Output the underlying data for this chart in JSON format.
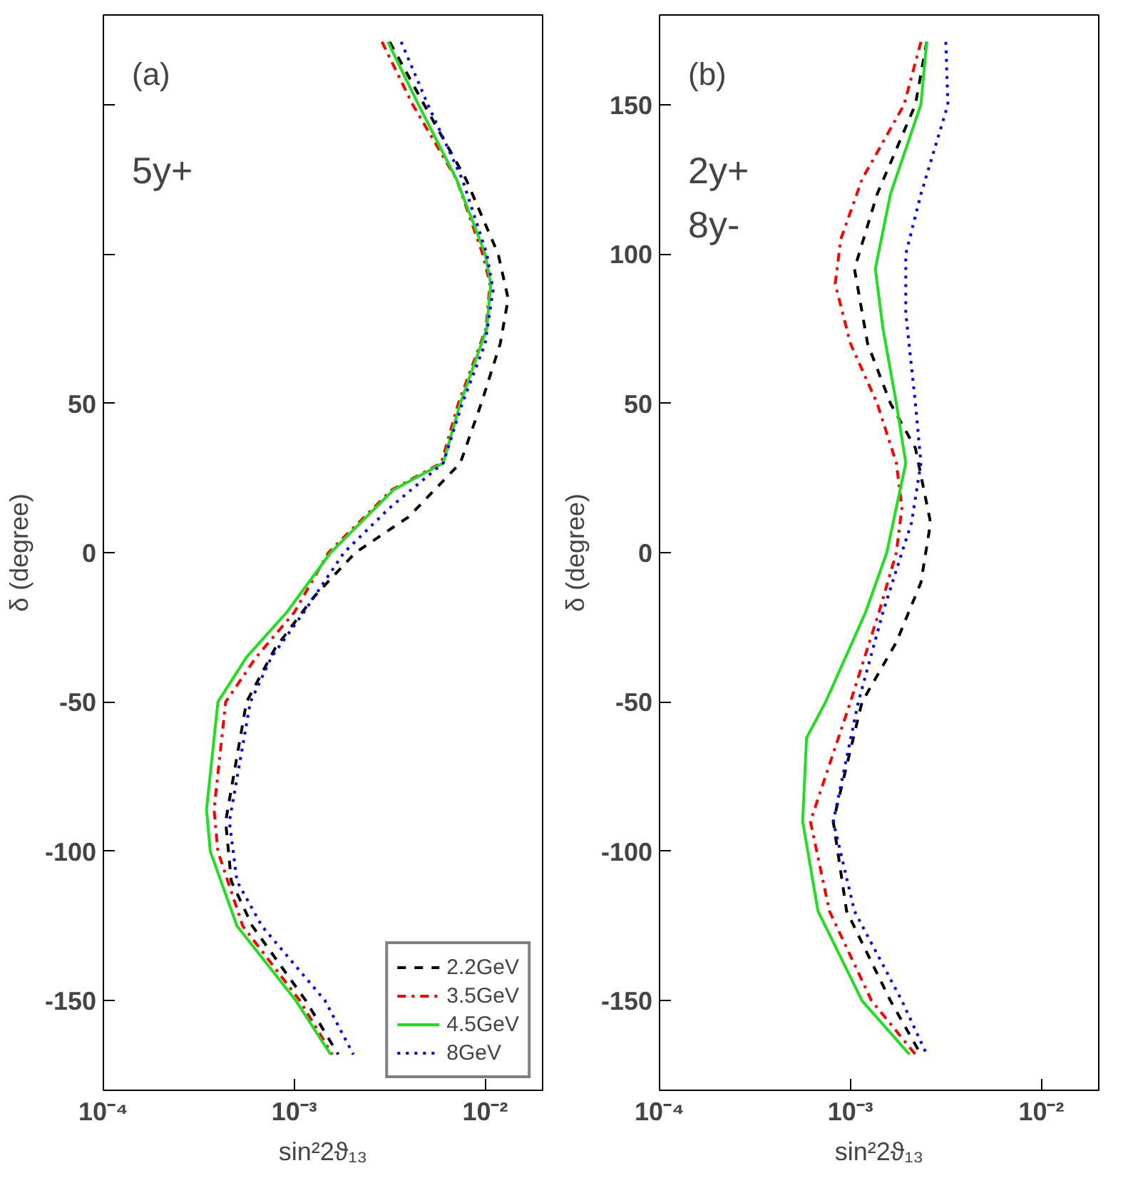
{
  "chart_data": [
    {
      "type": "line",
      "log": "x",
      "xlabel": "sin²2ϑ₁₃",
      "ylabel": "δ (degree)",
      "annotations": [
        "(a)",
        "5y+"
      ],
      "xlim": [
        0.0001,
        0.02
      ],
      "ylim": [
        -180,
        180
      ],
      "xticks": [
        {
          "value": 0.0001,
          "label": "10⁻⁴"
        },
        {
          "value": 0.001,
          "label": "10⁻³"
        },
        {
          "value": 0.01,
          "label": "10⁻²"
        }
      ],
      "yticks": [
        {
          "value": 150,
          "label": null
        },
        {
          "value": 100,
          "label": null
        },
        50,
        0,
        -50,
        -100,
        -150
      ],
      "grid": false,
      "legend": "bottom right",
      "series": [
        {
          "name": "2.2GeV",
          "color": "#000000",
          "line_style": "dashed",
          "x": [
            0.00316,
            0.00479,
            0.00794,
            0.0117,
            0.0132,
            0.012,
            0.00955,
            0.00741,
            0.00398,
            0.00209,
            0.00126,
            0.000794,
            0.000562,
            0.000437,
            0.000468,
            0.000603,
            0.00115,
            0.0017
          ],
          "values": [
            171,
            150,
            125,
            100,
            85,
            70,
            50,
            30,
            12,
            0,
            -15,
            -32,
            -50,
            -90,
            -110,
            -125,
            -150,
            -168
          ]
        },
        {
          "name": "3.5GeV",
          "color": "#ff0000",
          "line_style": "dashdot",
          "x": [
            0.00288,
            0.00417,
            0.00708,
            0.0097,
            0.0106,
            0.0101,
            0.00724,
            0.00589,
            0.00324,
            0.00151,
            0.001,
            0.000631,
            0.000437,
            0.00038,
            0.000398,
            0.000537,
            0.00107,
            0.00158
          ],
          "values": [
            171,
            150,
            125,
            100,
            90,
            75,
            50,
            30,
            21,
            0,
            -20,
            -35,
            -50,
            -86,
            -100,
            -125,
            -150,
            -168
          ]
        },
        {
          "name": "4.5GeV",
          "color": "#22dd22",
          "line_style": "solid",
          "x": [
            0.00309,
            0.00447,
            0.00708,
            0.01,
            0.0107,
            0.0102,
            0.00741,
            0.00603,
            0.00331,
            0.00155,
            0.000912,
            0.000562,
            0.000398,
            0.000347,
            0.000363,
            0.000501,
            0.00102,
            0.00155
          ],
          "values": [
            171,
            150,
            125,
            100,
            90,
            75,
            50,
            30,
            21,
            0,
            -20,
            -35,
            -50,
            -86,
            -100,
            -125,
            -150,
            -168
          ]
        },
        {
          "name": "8GeV",
          "color": "#0000ff",
          "line_style": "dotted",
          "x": [
            0.00363,
            0.00501,
            0.00759,
            0.0102,
            0.011,
            0.01,
            0.00759,
            0.00603,
            0.00316,
            0.00182,
            0.00112,
            0.000759,
            0.000589,
            0.000457,
            0.000501,
            0.000676,
            0.00145,
            0.00204
          ],
          "values": [
            171,
            150,
            125,
            100,
            88,
            70,
            50,
            30,
            15,
            0,
            -20,
            -35,
            -50,
            -90,
            -110,
            -125,
            -150,
            -168
          ]
        }
      ]
    },
    {
      "type": "line",
      "log": "x",
      "xlabel": "sin²2ϑ₁₃",
      "ylabel": "δ (degree)",
      "annotations": [
        "(b)",
        "2y+",
        "8y-"
      ],
      "xlim": [
        0.0001,
        0.02
      ],
      "ylim": [
        -180,
        180
      ],
      "xticks": [
        {
          "value": 0.0001,
          "label": "10⁻⁴"
        },
        {
          "value": 0.001,
          "label": "10⁻³"
        },
        {
          "value": 0.01,
          "label": "10⁻²"
        }
      ],
      "yticks": [
        150,
        100,
        50,
        0,
        -50,
        -100,
        -150
      ],
      "grid": false,
      "series": [
        {
          "color": "#000000",
          "line_style": "dashed",
          "x": [
            0.00251,
            0.00219,
            0.00138,
            0.00105,
            0.00123,
            0.00162,
            0.00219,
            0.00263,
            0.00234,
            0.00174,
            0.00115,
            0.000813,
            0.000955,
            0.00162,
            0.00234
          ],
          "values": [
            171,
            150,
            120,
            95,
            70,
            50,
            35,
            10,
            -10,
            -30,
            -50,
            -90,
            -120,
            -150,
            -168
          ]
        },
        {
          "color": "#ff0000",
          "line_style": "dashdot",
          "x": [
            0.00234,
            0.00191,
            0.00115,
            0.000891,
            0.000832,
            0.001,
            0.00138,
            0.00174,
            0.00186,
            0.00174,
            0.00141,
            0.001,
            0.000617,
            0.000776,
            0.00129,
            0.00219
          ],
          "values": [
            171,
            150,
            125,
            105,
            90,
            70,
            50,
            30,
            15,
            0,
            -20,
            -50,
            -90,
            -120,
            -150,
            -168
          ]
        },
        {
          "color": "#22dd22",
          "line_style": "solid",
          "x": [
            0.00251,
            0.00234,
            0.00162,
            0.00135,
            0.00148,
            0.00174,
            0.00195,
            0.00155,
            0.0012,
            0.000741,
            0.000589,
            0.000562,
            0.000676,
            0.00115,
            0.00204
          ],
          "values": [
            171,
            150,
            120,
            95,
            75,
            50,
            30,
            0,
            -20,
            -50,
            -62,
            -90,
            -120,
            -150,
            -168
          ]
        },
        {
          "color": "#0000ff",
          "line_style": "dotted",
          "x": [
            0.00316,
            0.00324,
            0.00234,
            0.00195,
            0.00195,
            0.00219,
            0.00234,
            0.00209,
            0.00186,
            0.00148,
            0.0011,
            0.000813,
            0.00105,
            0.00186,
            0.00251
          ],
          "values": [
            171,
            150,
            120,
            100,
            80,
            50,
            30,
            10,
            0,
            -20,
            -50,
            -90,
            -120,
            -150,
            -168
          ]
        }
      ]
    }
  ]
}
